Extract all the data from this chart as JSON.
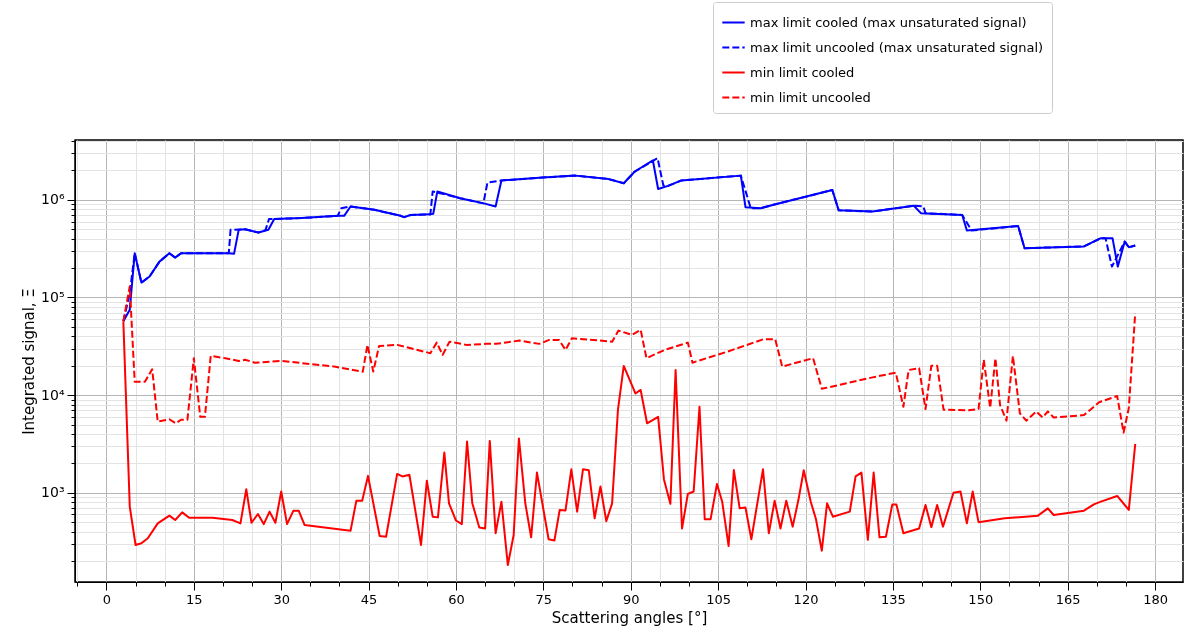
{
  "chart_data": {
    "type": "line",
    "xlabel": "Scattering angles [°]",
    "ylabel": "Integrated signal, Ξ",
    "xlim": [
      -5.4,
      184.8
    ],
    "ylim": [
      122,
      4100000
    ],
    "log": "y",
    "grid": true,
    "legend": "top right",
    "xticks": [
      {
        "value": -5,
        "label": null
      },
      0,
      {
        "value": 5,
        "label": null
      },
      {
        "value": 10,
        "label": null
      },
      15,
      {
        "value": 20,
        "label": null
      },
      {
        "value": 25,
        "label": null
      },
      30,
      {
        "value": 35,
        "label": null
      },
      {
        "value": 40,
        "label": null
      },
      45,
      {
        "value": 50,
        "label": null
      },
      {
        "value": 55,
        "label": null
      },
      60,
      {
        "value": 65,
        "label": null
      },
      {
        "value": 70,
        "label": null
      },
      75,
      {
        "value": 80,
        "label": null
      },
      {
        "value": 85,
        "label": null
      },
      90,
      {
        "value": 95,
        "label": null
      },
      {
        "value": 100,
        "label": null
      },
      105,
      {
        "value": 110,
        "label": null
      },
      {
        "value": 115,
        "label": null
      },
      120,
      {
        "value": 125,
        "label": null
      },
      {
        "value": 130,
        "label": null
      },
      135,
      {
        "value": 140,
        "label": null
      },
      {
        "value": 145,
        "label": null
      },
      150,
      {
        "value": 155,
        "label": null
      },
      {
        "value": 160,
        "label": null
      },
      165,
      {
        "value": 170,
        "label": null
      },
      {
        "value": 175,
        "label": null
      },
      180
    ],
    "yticks": [
      {
        "value": 200,
        "label": null
      },
      {
        "value": 300,
        "label": null
      },
      {
        "value": 400,
        "label": null
      },
      {
        "value": 500,
        "label": null
      },
      {
        "value": 600,
        "label": null
      },
      {
        "value": 700,
        "label": null
      },
      {
        "value": 800,
        "label": null
      },
      {
        "value": 900,
        "label": null
      },
      {
        "value": 1000,
        "label": "10³"
      },
      {
        "value": 2000,
        "label": null
      },
      {
        "value": 3000,
        "label": null
      },
      {
        "value": 4000,
        "label": null
      },
      {
        "value": 5000,
        "label": null
      },
      {
        "value": 6000,
        "label": null
      },
      {
        "value": 7000,
        "label": null
      },
      {
        "value": 8000,
        "label": null
      },
      {
        "value": 9000,
        "label": null
      },
      {
        "value": 10000,
        "label": "10⁴"
      },
      {
        "value": 20000,
        "label": null
      },
      {
        "value": 30000,
        "label": null
      },
      {
        "value": 40000,
        "label": null
      },
      {
        "value": 50000,
        "label": null
      },
      {
        "value": 60000,
        "label": null
      },
      {
        "value": 70000,
        "label": null
      },
      {
        "value": 80000,
        "label": null
      },
      {
        "value": 90000,
        "label": null
      },
      {
        "value": 100000,
        "label": "10⁵"
      },
      {
        "value": 200000,
        "label": null
      },
      {
        "value": 300000,
        "label": null
      },
      {
        "value": 400000,
        "label": null
      },
      {
        "value": 500000,
        "label": null
      },
      {
        "value": 600000,
        "label": null
      },
      {
        "value": 700000,
        "label": null
      },
      {
        "value": 800000,
        "label": null
      },
      {
        "value": 900000,
        "label": null
      },
      {
        "value": 1000000,
        "label": "10⁶"
      },
      {
        "value": 2000000,
        "label": null
      },
      {
        "value": 3000000,
        "label": null
      },
      {
        "value": 4000000,
        "label": null
      }
    ],
    "series": [
      {
        "name": "max limit cooled (max unsaturated signal)",
        "color": "#0000ff",
        "line_style": "solid",
        "x": [
          2.9,
          4.0,
          4.85,
          6.0,
          7.4,
          9.1,
          10.8,
          11.8,
          12.8,
          21.0,
          21.9,
          22.7,
          23.8,
          26.1,
          27.8,
          28.8,
          33.5,
          39.7,
          40.8,
          41.9,
          46.0,
          50.5,
          51.1,
          52.2,
          55.6,
          56.1,
          56.8,
          60.7,
          64.8,
          66.8,
          67.8,
          74.9,
          80.5,
          86.2,
          88.8,
          90.7,
          93.8,
          94.7,
          96.4,
          98.7,
          108.9,
          109.7,
          112.3,
          114.5,
          124.6,
          125.7,
          131.5,
          138.6,
          139.8,
          146.9,
          147.7,
          156.5,
          157.6,
          167.8,
          170.7,
          172.7,
          173.6,
          174.8,
          175.5,
          176.6
        ],
        "values": [
          57000,
          75000,
          284000,
          142000,
          164000,
          233000,
          284000,
          256000,
          284000,
          284000,
          280000,
          493000,
          500000,
          462000,
          493000,
          635000,
          650000,
          686000,
          686000,
          855000,
          790000,
          686000,
          665000,
          700000,
          710000,
          720000,
          1220000,
          1040000,
          920000,
          855000,
          1580000,
          1690000,
          1770000,
          1630000,
          1480000,
          1950000,
          2530000,
          1290000,
          1390000,
          1580000,
          1770000,
          840000,
          820000,
          890000,
          1260000,
          780000,
          760000,
          870000,
          730000,
          700000,
          485000,
          540000,
          320000,
          333000,
          405000,
          405000,
          207000,
          374000,
          327000,
          340000
        ]
      },
      {
        "name": "max limit uncooled (max unsaturated signal)",
        "color": "#0000ff",
        "line_style": "dashed",
        "x": [
          2.9,
          4.0,
          4.85,
          6.0,
          7.4,
          9.1,
          10.8,
          11.8,
          12.8,
          21.0,
          21.3,
          23.8,
          26.1,
          27.3,
          27.9,
          33.5,
          39.7,
          40.3,
          41.9,
          46.0,
          50.5,
          51.1,
          52.2,
          55.6,
          56.0,
          60.7,
          64.7,
          65.4,
          67.8,
          74.9,
          80.5,
          86.2,
          88.8,
          90.7,
          94.6,
          95.6,
          96.4,
          98.7,
          108.9,
          110.6,
          112.3,
          114.5,
          124.6,
          125.7,
          131.5,
          138.6,
          140.2,
          140.6,
          146.9,
          148.5,
          156.5,
          157.6,
          167.8,
          170.7,
          171.5,
          172.6,
          174.8,
          175.5,
          176.6
        ],
        "values": [
          57000,
          110000,
          284000,
          142000,
          164000,
          233000,
          284000,
          256000,
          284000,
          284000,
          493000,
          500000,
          462000,
          490000,
          635000,
          650000,
          686000,
          820000,
          855000,
          790000,
          686000,
          665000,
          700000,
          710000,
          1220000,
          1040000,
          920000,
          1500000,
          1580000,
          1690000,
          1770000,
          1630000,
          1480000,
          1950000,
          2670000,
          1400000,
          1390000,
          1580000,
          1770000,
          820000,
          820000,
          890000,
          1260000,
          780000,
          760000,
          870000,
          860000,
          730000,
          700000,
          485000,
          540000,
          320000,
          333000,
          405000,
          405000,
          207000,
          374000,
          327000,
          340000
        ]
      },
      {
        "name": "min limit cooled",
        "color": "#ff0000",
        "line_style": "solid",
        "x": [
          2.9,
          4.0,
          5.0,
          6.0,
          7.1,
          8.8,
          10.8,
          11.8,
          13.0,
          14.2,
          18.2,
          21.6,
          23.0,
          24.0,
          24.9,
          26.0,
          27.0,
          28.0,
          29.0,
          30.0,
          31.0,
          32.1,
          33.0,
          34.0,
          41.9,
          42.9,
          43.9,
          44.9,
          46.9,
          48.0,
          49.9,
          50.8,
          52.0,
          54.0,
          55.0,
          56.0,
          56.9,
          58.0,
          58.8,
          60.0,
          61.0,
          61.9,
          62.8,
          64.0,
          65.0,
          65.8,
          66.8,
          67.8,
          68.9,
          69.9,
          70.8,
          71.9,
          72.9,
          73.9,
          75.9,
          76.9,
          77.8,
          78.8,
          79.8,
          80.8,
          81.8,
          82.8,
          83.8,
          84.8,
          85.8,
          86.8,
          87.8,
          88.8,
          90.8,
          91.7,
          92.8,
          94.7,
          95.7,
          96.8,
          97.7,
          98.8,
          99.8,
          100.8,
          101.8,
          102.7,
          103.7,
          104.8,
          105.7,
          106.8,
          107.7,
          108.7,
          109.7,
          110.7,
          112.7,
          113.7,
          114.7,
          115.7,
          116.7,
          117.8,
          118.8,
          119.7,
          120.9,
          121.8,
          122.8,
          123.7,
          124.7,
          127.6,
          128.6,
          129.6,
          130.7,
          131.7,
          132.7,
          133.8,
          134.9,
          135.6,
          136.8,
          139.5,
          140.6,
          141.6,
          142.6,
          143.6,
          145.4,
          146.6,
          147.7,
          148.7,
          149.7,
          154.2,
          159.9,
          161.6,
          162.6,
          167.8,
          169.5,
          170.7,
          173.5,
          175.5,
          176.6
        ],
        "values": [
          56600,
          721,
          292,
          304,
          342,
          486,
          583,
          526,
          630,
          556,
          556,
          526,
          486,
          1087,
          493,
          606,
          478,
          641,
          493,
          1030,
          478,
          656,
          656,
          468,
          409,
          830,
          830,
          1490,
          361,
          355,
          1560,
          1470,
          1530,
          292,
          1330,
          569,
          560,
          2580,
          780,
          520,
          478,
          3350,
          780,
          442,
          430,
          3400,
          385,
          811,
          182,
          370,
          3600,
          780,
          350,
          1610,
          334,
          325,
          667,
          660,
          1740,
          640,
          1740,
          1700,
          548,
          1160,
          512,
          780,
          7050,
          19900,
          10400,
          11300,
          5150,
          6000,
          1370,
          770,
          18100,
          430,
          973,
          1030,
          7600,
          535,
          535,
          1230,
          811,
          285,
          1710,
          693,
          705,
          334,
          1740,
          385,
          830,
          430,
          830,
          450,
          857,
          1700,
          811,
          535,
          255,
          780,
          569,
          641,
          1470,
          1610,
          330,
          1610,
          350,
          355,
          760,
          760,
          385,
          430,
          750,
          445,
          750,
          450,
          1000,
          1030,
          486,
          1030,
          500,
          548,
          583,
          693,
          592,
          656,
          762,
          811,
          928,
          667,
          3160
        ]
      },
      {
        "name": "min limit uncooled",
        "color": "#ff0000",
        "line_style": "dashed",
        "x": [
          2.9,
          4.0,
          4.85,
          6.6,
          7.85,
          8.8,
          10.8,
          11.9,
          12.8,
          13.9,
          15.0,
          16.1,
          16.9,
          17.9,
          20.4,
          22.7,
          23.8,
          25.5,
          30.1,
          39.1,
          44.0,
          44.8,
          45.8,
          46.8,
          49.9,
          55.6,
          56.7,
          57.7,
          58.9,
          61.8,
          65.2,
          66.9,
          70.9,
          74.3,
          76.0,
          77.7,
          78.8,
          79.9,
          86.8,
          87.9,
          90.2,
          91.7,
          92.7,
          95.8,
          99.8,
          100.6,
          106.6,
          112.8,
          114.8,
          116.0,
          121.3,
          122.8,
          131.5,
          135.5,
          136.8,
          137.7,
          139.5,
          140.6,
          141.6,
          142.6,
          143.7,
          148.0,
          149.7,
          150.6,
          151.7,
          152.6,
          153.4,
          154.5,
          155.6,
          156.8,
          157.9,
          159.6,
          160.7,
          161.6,
          162.6,
          167.8,
          170.4,
          173.5,
          174.6,
          175.5,
          176.6
        ],
        "values": [
          57000,
          130000,
          13700,
          13700,
          18400,
          5350,
          5660,
          5150,
          5600,
          5600,
          23900,
          6000,
          6000,
          25200,
          23900,
          22400,
          23000,
          21500,
          22400,
          19600,
          17400,
          32700,
          17400,
          31900,
          32700,
          26900,
          34500,
          25800,
          35300,
          32700,
          33500,
          33500,
          36200,
          33500,
          36800,
          36800,
          29000,
          38300,
          35300,
          45800,
          41400,
          46600,
          23900,
          29000,
          34500,
          21500,
          27900,
          37400,
          37400,
          19600,
          23900,
          11600,
          15200,
          17000,
          7600,
          18100,
          18900,
          7200,
          20000,
          20000,
          7100,
          7000,
          7200,
          23000,
          7400,
          23900,
          7900,
          5480,
          25200,
          6500,
          5480,
          6800,
          5900,
          6800,
          5900,
          6250,
          8450,
          9800,
          4130,
          7400,
          69000
        ]
      }
    ]
  }
}
